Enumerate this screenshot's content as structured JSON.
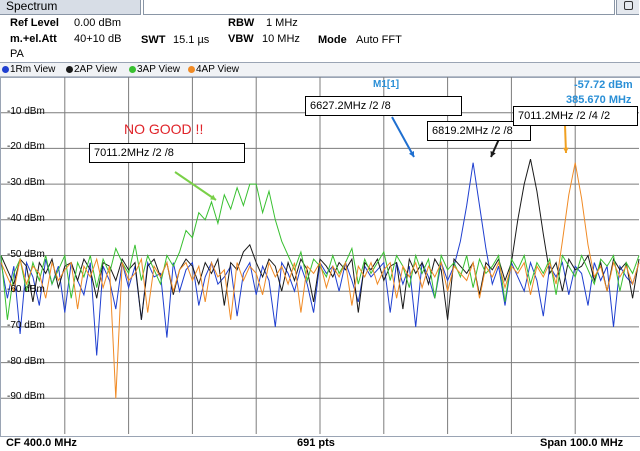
{
  "window": {
    "tab_title": "Spectrum"
  },
  "settings": {
    "ref_level_label": "Ref Level",
    "ref_level_value": "0.00 dBm",
    "att_label": "m.+el.Att",
    "att_value": "40+10 dB",
    "swt_label": "SWT",
    "swt_value": "15.1 µs",
    "rbw_label": "RBW",
    "rbw_value": "1 MHz",
    "vbw_label": "VBW",
    "vbw_value": "10 MHz",
    "mode_label": "Mode",
    "mode_value": "Auto FFT",
    "pa_label": "PA"
  },
  "traces": [
    {
      "label": "1Rm View",
      "color": "#1f3fd0"
    },
    {
      "label": "2AP View",
      "color": "#1a1a1a"
    },
    {
      "label": "3AP View",
      "color": "#38c030"
    },
    {
      "label": "4AP View",
      "color": "#f08a24"
    }
  ],
  "marker": {
    "name": "M1[1]",
    "level": "-57.72 dBm",
    "freq": "385.670 MHz"
  },
  "annotations": {
    "no_good": "NO GOOD !!",
    "green_label": "7011.2MHz /2 /8",
    "blue_label": "6627.2MHz /2 /8",
    "black_label": "6819.2MHz /2 /8",
    "orange_label": "7011.2MHz /2 /4 /2"
  },
  "footer": {
    "cf": "CF 400.0 MHz",
    "pts": "691 pts",
    "span": "Span 100.0 MHz"
  },
  "chart_data": {
    "type": "line",
    "title": "",
    "xlabel": "",
    "ylabel": "",
    "y_tick_labels": [
      "-10 dBm",
      "-20 dBm",
      "-30 dBm",
      "-40 dBm",
      "-50 dBm",
      "-60 dBm",
      "-70 dBm",
      "-80 dBm",
      "-90 dBm"
    ],
    "y_ticks": [
      -10,
      -20,
      -30,
      -40,
      -50,
      -60,
      -70,
      -80,
      -90
    ],
    "ylim": [
      -100,
      0
    ],
    "xlim": [
      350,
      450
    ],
    "grid": true,
    "series": [
      {
        "name": "1Rm View",
        "color": "#1f3fd0",
        "x": [
          350,
          351,
          352,
          353,
          354,
          355,
          356,
          357,
          358,
          359,
          360,
          361,
          362,
          363,
          364,
          365,
          366,
          367,
          368,
          369,
          370,
          371,
          372,
          373,
          374,
          375,
          376,
          377,
          378,
          379,
          380,
          381,
          382,
          383,
          384,
          385,
          386,
          387,
          388,
          389,
          390,
          391,
          392,
          393,
          394,
          395,
          396,
          397,
          398,
          399,
          400,
          401,
          402,
          403,
          404,
          405,
          406,
          407,
          408,
          409,
          410,
          411,
          412,
          413,
          414,
          415,
          416,
          417,
          418,
          419,
          420,
          421,
          422,
          423,
          424,
          425,
          426,
          427,
          428,
          429,
          430,
          431,
          432,
          433,
          434,
          435,
          436,
          437,
          438,
          439,
          440,
          441,
          442,
          443,
          444,
          445,
          446,
          447,
          448,
          449,
          450
        ],
        "y": [
          -52,
          -62,
          -53,
          -72,
          -52,
          -56,
          -64,
          -51,
          -58,
          -53,
          -66,
          -52,
          -57,
          -61,
          -52,
          -78,
          -53,
          -57,
          -65,
          -52,
          -59,
          -53,
          -68,
          -52,
          -56,
          -55,
          -73,
          -52,
          -60,
          -54,
          -52,
          -64,
          -56,
          -52,
          -58,
          -56,
          -53,
          -67,
          -55,
          -52,
          -61,
          -53,
          -57,
          -70,
          -52,
          -55,
          -60,
          -53,
          -58,
          -66,
          -52,
          -55,
          -53,
          -60,
          -52,
          -57,
          -63,
          -53,
          -56,
          -54,
          -52,
          -66,
          -52,
          -58,
          -53,
          -70,
          -52,
          -56,
          -62,
          -52,
          -57,
          -53,
          -46,
          -36,
          -24,
          -36,
          -48,
          -58,
          -53,
          -64,
          -52,
          -56,
          -60,
          -52,
          -57,
          -67,
          -53,
          -56,
          -52,
          -61,
          -53,
          -55,
          -64,
          -52,
          -57,
          -53,
          -70,
          -53,
          -56,
          -58,
          -52
        ]
      },
      {
        "name": "2AP View",
        "color": "#1a1a1a",
        "x": [
          350,
          351,
          352,
          353,
          354,
          355,
          356,
          357,
          358,
          359,
          360,
          361,
          362,
          363,
          364,
          365,
          366,
          367,
          368,
          369,
          370,
          371,
          372,
          373,
          374,
          375,
          376,
          377,
          378,
          379,
          380,
          381,
          382,
          383,
          384,
          385,
          386,
          387,
          388,
          389,
          390,
          391,
          392,
          393,
          394,
          395,
          396,
          397,
          398,
          399,
          400,
          401,
          402,
          403,
          404,
          405,
          406,
          407,
          408,
          409,
          410,
          411,
          412,
          413,
          414,
          415,
          416,
          417,
          418,
          419,
          420,
          421,
          422,
          423,
          424,
          425,
          426,
          427,
          428,
          429,
          430,
          431,
          432,
          433,
          434,
          435,
          436,
          437,
          438,
          439,
          440,
          441,
          442,
          443,
          444,
          445,
          446,
          447,
          448,
          449,
          450
        ],
        "y": [
          -50,
          -54,
          -58,
          -51,
          -53,
          -63,
          -52,
          -55,
          -51,
          -59,
          -53,
          -52,
          -57,
          -51,
          -54,
          -62,
          -52,
          -53,
          -57,
          -51,
          -54,
          -52,
          -68,
          -53,
          -51,
          -56,
          -52,
          -61,
          -54,
          -51,
          -53,
          -58,
          -52,
          -55,
          -51,
          -64,
          -52,
          -54,
          -49,
          -47,
          -52,
          -56,
          -51,
          -53,
          -60,
          -52,
          -57,
          -51,
          -54,
          -63,
          -51,
          -53,
          -56,
          -52,
          -54,
          -51,
          -66,
          -52,
          -54,
          -51,
          -57,
          -53,
          -52,
          -65,
          -51,
          -55,
          -52,
          -58,
          -51,
          -54,
          -68,
          -51,
          -53,
          -55,
          -52,
          -61,
          -52,
          -54,
          -51,
          -57,
          -52,
          -40,
          -30,
          -23,
          -32,
          -44,
          -55,
          -52,
          -60,
          -51,
          -54,
          -53,
          -50,
          -57,
          -52,
          -60,
          -51,
          -54,
          -52,
          -62,
          -51
        ]
      },
      {
        "name": "3AP View",
        "color": "#38c030",
        "x": [
          350,
          351,
          352,
          353,
          354,
          355,
          356,
          357,
          358,
          359,
          360,
          361,
          362,
          363,
          364,
          365,
          366,
          367,
          368,
          369,
          370,
          371,
          372,
          373,
          374,
          375,
          376,
          377,
          378,
          379,
          380,
          381,
          382,
          383,
          384,
          385,
          386,
          387,
          388,
          389,
          390,
          391,
          392,
          393,
          394,
          395,
          396,
          397,
          398,
          399,
          400,
          401,
          402,
          403,
          404,
          405,
          406,
          407,
          408,
          409,
          410,
          411,
          412,
          413,
          414,
          415,
          416,
          417,
          418,
          419,
          420,
          421,
          422,
          423,
          424,
          425,
          426,
          427,
          428,
          429,
          430,
          431,
          432,
          433,
          434,
          435,
          436,
          437,
          438,
          439,
          440,
          441,
          442,
          443,
          444,
          445,
          446,
          447,
          448,
          449,
          450
        ],
        "y": [
          -50,
          -68,
          -55,
          -51,
          -60,
          -52,
          -57,
          -50,
          -58,
          -54,
          -50,
          -62,
          -52,
          -56,
          -50,
          -59,
          -51,
          -55,
          -48,
          -52,
          -55,
          -47,
          -57,
          -50,
          -54,
          -58,
          -50,
          -53,
          -49,
          -43,
          -45,
          -38,
          -40,
          -35,
          -41,
          -33,
          -37,
          -31,
          -36,
          -30,
          -30,
          -38,
          -32,
          -40,
          -46,
          -50,
          -54,
          -49,
          -57,
          -51,
          -53,
          -56,
          -50,
          -55,
          -52,
          -48,
          -58,
          -51,
          -55,
          -52,
          -49,
          -57,
          -50,
          -53,
          -59,
          -50,
          -55,
          -51,
          -62,
          -50,
          -54,
          -52,
          -56,
          -50,
          -59,
          -51,
          -55,
          -53,
          -50,
          -63,
          -51,
          -54,
          -50,
          -58,
          -52,
          -55,
          -51,
          -61,
          -50,
          -53,
          -56,
          -50,
          -54,
          -58,
          -51,
          -53,
          -50,
          -60,
          -52,
          -55,
          -50
        ]
      },
      {
        "name": "4AP View",
        "color": "#f08a24",
        "x": [
          350,
          351,
          352,
          353,
          354,
          355,
          356,
          357,
          358,
          359,
          360,
          361,
          362,
          363,
          364,
          365,
          366,
          367,
          368,
          369,
          370,
          371,
          372,
          373,
          374,
          375,
          376,
          377,
          378,
          379,
          380,
          381,
          382,
          383,
          384,
          385,
          386,
          387,
          388,
          389,
          390,
          391,
          392,
          393,
          394,
          395,
          396,
          397,
          398,
          399,
          400,
          401,
          402,
          403,
          404,
          405,
          406,
          407,
          408,
          409,
          410,
          411,
          412,
          413,
          414,
          415,
          416,
          417,
          418,
          419,
          420,
          421,
          422,
          423,
          424,
          425,
          426,
          427,
          428,
          429,
          430,
          431,
          432,
          433,
          434,
          435,
          436,
          437,
          438,
          439,
          440,
          441,
          442,
          443,
          444,
          445,
          446,
          447,
          448,
          449,
          450
        ],
        "y": [
          -52,
          -56,
          -60,
          -51,
          -58,
          -53,
          -55,
          -62,
          -52,
          -57,
          -54,
          -52,
          -65,
          -53,
          -56,
          -51,
          -59,
          -53,
          -90,
          -52,
          -57,
          -55,
          -51,
          -66,
          -53,
          -56,
          -52,
          -60,
          -54,
          -52,
          -57,
          -53,
          -63,
          -52,
          -56,
          -54,
          -68,
          -52,
          -57,
          -53,
          -55,
          -61,
          -52,
          -56,
          -53,
          -58,
          -52,
          -66,
          -53,
          -55,
          -52,
          -59,
          -53,
          -56,
          -52,
          -64,
          -53,
          -56,
          -52,
          -58,
          -54,
          -52,
          -62,
          -53,
          -56,
          -52,
          -59,
          -53,
          -56,
          -52,
          -60,
          -53,
          -55,
          -57,
          -52,
          -62,
          -53,
          -56,
          -52,
          -59,
          -53,
          -55,
          -52,
          -61,
          -53,
          -56,
          -52,
          -58,
          -46,
          -33,
          -24,
          -34,
          -47,
          -56,
          -53,
          -60,
          -52,
          -56,
          -53,
          -58,
          -52
        ]
      }
    ]
  }
}
